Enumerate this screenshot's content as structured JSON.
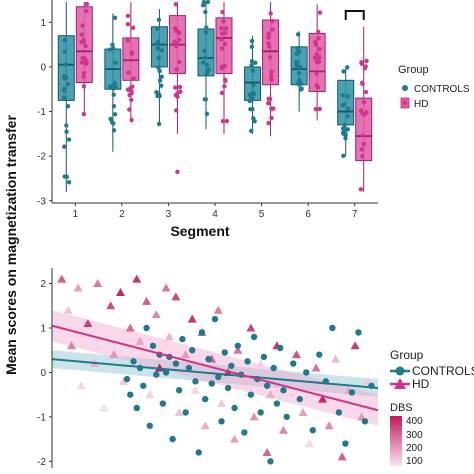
{
  "colors": {
    "controls": "#1f7a8c",
    "hd": "#d0358a",
    "controls_box": "#2b8fa3",
    "hd_box": "#e05aa6",
    "dbs_low": "#fbe3f1",
    "dbs_high": "#c2185b",
    "axis": "#333333"
  },
  "shared_ylabel": "Mean scores on magnetization transfer",
  "chart_data": [
    {
      "type": "boxplot",
      "xlabel": "Segment",
      "categories": [
        "1",
        "2",
        "3",
        "4",
        "5",
        "6",
        "7"
      ],
      "yticks": [
        "-3",
        "-2",
        "-1",
        "0",
        "1"
      ],
      "ylim": [
        -3.05,
        1.5
      ],
      "legend": {
        "title": "Group",
        "placement": "right",
        "entries": [
          "CONTROLS",
          "HD"
        ]
      },
      "significance_bracket": "7",
      "series": [
        {
          "name": "CONTROLS",
          "boxes": [
            {
              "q1": -0.75,
              "median": 0.05,
              "q3": 0.7,
              "lo": -2.8,
              "hi": 1.5
            },
            {
              "q1": -0.5,
              "median": -0.05,
              "q3": 0.4,
              "lo": -1.9,
              "hi": 1.2
            },
            {
              "q1": 0.0,
              "median": 0.5,
              "q3": 0.9,
              "lo": -1.3,
              "hi": 1.3
            },
            {
              "q1": -0.2,
              "median": 0.2,
              "q3": 0.85,
              "lo": -1.4,
              "hi": 1.5
            },
            {
              "q1": -0.75,
              "median": -0.35,
              "q3": 0.0,
              "lo": -1.5,
              "hi": 0.7
            },
            {
              "q1": -0.4,
              "median": -0.05,
              "q3": 0.45,
              "lo": -1.0,
              "hi": 0.8
            },
            {
              "q1": -1.3,
              "median": -1.0,
              "q3": -0.3,
              "lo": -2.0,
              "hi": 0.0
            }
          ]
        },
        {
          "name": "HD",
          "boxes": [
            {
              "q1": -0.35,
              "median": 0.35,
              "q3": 1.35,
              "lo": -1.1,
              "hi": 1.5
            },
            {
              "q1": -0.3,
              "median": 0.15,
              "q3": 0.65,
              "lo": -1.2,
              "hi": 1.5
            },
            {
              "q1": -0.15,
              "median": 0.5,
              "q3": 1.15,
              "lo": -1.5,
              "hi": 1.5
            },
            {
              "q1": -0.15,
              "median": 0.65,
              "q3": 1.1,
              "lo": -1.5,
              "hi": 1.5
            },
            {
              "q1": -0.4,
              "median": 0.35,
              "q3": 1.05,
              "lo": -1.55,
              "hi": 1.5
            },
            {
              "q1": -0.55,
              "median": -0.1,
              "q3": 0.75,
              "lo": -1.2,
              "hi": 1.4
            },
            {
              "q1": -2.1,
              "median": -1.55,
              "q3": -0.7,
              "lo": -2.8,
              "hi": 0.9
            }
          ]
        }
      ]
    },
    {
      "type": "scatter",
      "yticks": [
        "-2",
        "-1",
        "0",
        "1",
        "2"
      ],
      "ylim": [
        -2.15,
        2.35
      ],
      "xlim": [
        0,
        1
      ],
      "legend": [
        {
          "title": "Group",
          "placement": "right",
          "entries": [
            "CONTROLS",
            "HD"
          ]
        },
        {
          "title": "DBS",
          "placement": "right",
          "entries": [
            "400",
            "300",
            "200",
            "100"
          ]
        }
      ],
      "trend_lines": [
        {
          "name": "CONTROLS",
          "y_start": 0.3,
          "y_end": -0.35,
          "band": 0.2
        },
        {
          "name": "HD",
          "y_start": 1.05,
          "y_end": -0.85,
          "band": 0.35
        }
      ],
      "series": [
        {
          "name": "CONTROLS",
          "points": [
            [
              0.23,
              -0.15
            ],
            [
              0.24,
              -0.5
            ],
            [
              0.25,
              0.25
            ],
            [
              0.26,
              -0.8
            ],
            [
              0.27,
              0.1
            ],
            [
              0.28,
              -0.3
            ],
            [
              0.29,
              1.0
            ],
            [
              0.3,
              -1.2
            ],
            [
              0.31,
              0.6
            ],
            [
              0.32,
              -0.05
            ],
            [
              0.33,
              0.4
            ],
            [
              0.34,
              -0.7
            ],
            [
              0.35,
              0.0
            ],
            [
              0.36,
              0.35
            ],
            [
              0.37,
              -1.5
            ],
            [
              0.38,
              0.2
            ],
            [
              0.39,
              -0.4
            ],
            [
              0.4,
              0.75
            ],
            [
              0.41,
              -0.9
            ],
            [
              0.42,
              0.1
            ],
            [
              0.43,
              0.5
            ],
            [
              0.44,
              -0.2
            ],
            [
              0.45,
              -1.8
            ],
            [
              0.46,
              0.9
            ],
            [
              0.47,
              -0.6
            ],
            [
              0.48,
              0.3
            ],
            [
              0.49,
              -0.25
            ],
            [
              0.5,
              1.2
            ],
            [
              0.51,
              -0.1
            ],
            [
              0.52,
              -1.1
            ],
            [
              0.53,
              0.45
            ],
            [
              0.54,
              -0.35
            ],
            [
              0.55,
              0.15
            ],
            [
              0.56,
              -0.8
            ],
            [
              0.57,
              0.6
            ],
            [
              0.58,
              -0.05
            ],
            [
              0.59,
              -1.35
            ],
            [
              0.6,
              0.25
            ],
            [
              0.61,
              -0.5
            ],
            [
              0.62,
              0.8
            ],
            [
              0.63,
              -0.15
            ],
            [
              0.64,
              -0.9
            ],
            [
              0.65,
              0.35
            ],
            [
              0.66,
              -0.3
            ],
            [
              0.67,
              -2.0
            ],
            [
              0.68,
              0.1
            ],
            [
              0.69,
              -0.7
            ],
            [
              0.7,
              0.55
            ],
            [
              0.71,
              -0.4
            ],
            [
              0.72,
              -1.0
            ],
            [
              0.74,
              0.2
            ],
            [
              0.76,
              -0.6
            ],
            [
              0.78,
              0.0
            ],
            [
              0.8,
              -1.3
            ],
            [
              0.82,
              0.4
            ],
            [
              0.84,
              -0.2
            ],
            [
              0.86,
              1.0
            ],
            [
              0.88,
              -0.9
            ],
            [
              0.9,
              -1.6
            ],
            [
              0.92,
              -0.45
            ],
            [
              0.94,
              0.9
            ],
            [
              0.96,
              -1.1
            ],
            [
              0.98,
              -0.3
            ]
          ]
        },
        {
          "name": "HD",
          "points": [
            [
              0.03,
              2.1,
              300
            ],
            [
              0.05,
              1.4,
              150
            ],
            [
              0.06,
              0.6,
              250
            ],
            [
              0.08,
              1.9,
              200
            ],
            [
              0.09,
              -0.3,
              120
            ],
            [
              0.11,
              1.1,
              350
            ],
            [
              0.13,
              0.2,
              180
            ],
            [
              0.14,
              2.0,
              260
            ],
            [
              0.16,
              -0.8,
              110
            ],
            [
              0.18,
              1.5,
              320
            ],
            [
              0.19,
              0.4,
              220
            ],
            [
              0.21,
              1.8,
              380
            ],
            [
              0.22,
              -0.2,
              140
            ],
            [
              0.24,
              1.0,
              280
            ],
            [
              0.26,
              2.1,
              360
            ],
            [
              0.27,
              0.7,
              190
            ],
            [
              0.29,
              1.6,
              300
            ],
            [
              0.3,
              -0.5,
              130
            ],
            [
              0.32,
              1.3,
              240
            ],
            [
              0.33,
              0.1,
              400
            ],
            [
              0.35,
              1.9,
              260
            ],
            [
              0.36,
              0.8,
              170
            ],
            [
              0.38,
              1.7,
              330
            ],
            [
              0.39,
              -0.9,
              150
            ],
            [
              0.41,
              0.4,
              210
            ],
            [
              0.43,
              1.2,
              360
            ],
            [
              0.44,
              -0.4,
              120
            ],
            [
              0.46,
              0.9,
              280
            ],
            [
              0.47,
              -1.2,
              180
            ],
            [
              0.49,
              0.3,
              300
            ],
            [
              0.51,
              1.4,
              250
            ],
            [
              0.52,
              -0.7,
              140
            ],
            [
              0.54,
              0.0,
              380
            ],
            [
              0.56,
              -1.5,
              200
            ],
            [
              0.57,
              0.5,
              270
            ],
            [
              0.59,
              -0.2,
              160
            ],
            [
              0.61,
              1.0,
              340
            ],
            [
              0.62,
              -1.0,
              220
            ],
            [
              0.64,
              0.2,
              130
            ],
            [
              0.66,
              -1.8,
              290
            ],
            [
              0.67,
              -0.5,
              180
            ],
            [
              0.69,
              0.6,
              360
            ],
            [
              0.71,
              -1.3,
              240
            ],
            [
              0.73,
              -0.1,
              150
            ],
            [
              0.75,
              0.4,
              310
            ],
            [
              0.77,
              -0.9,
              200
            ],
            [
              0.79,
              -1.6,
              120
            ],
            [
              0.81,
              0.1,
              270
            ],
            [
              0.83,
              -0.6,
              380
            ],
            [
              0.85,
              -1.2,
              230
            ],
            [
              0.87,
              0.3,
              160
            ],
            [
              0.89,
              -1.9,
              300
            ],
            [
              0.91,
              -0.4,
              190
            ],
            [
              0.93,
              0.6,
              350
            ],
            [
              0.95,
              -1.0,
              210
            ],
            [
              0.97,
              -0.2,
              140
            ]
          ]
        }
      ]
    }
  ]
}
